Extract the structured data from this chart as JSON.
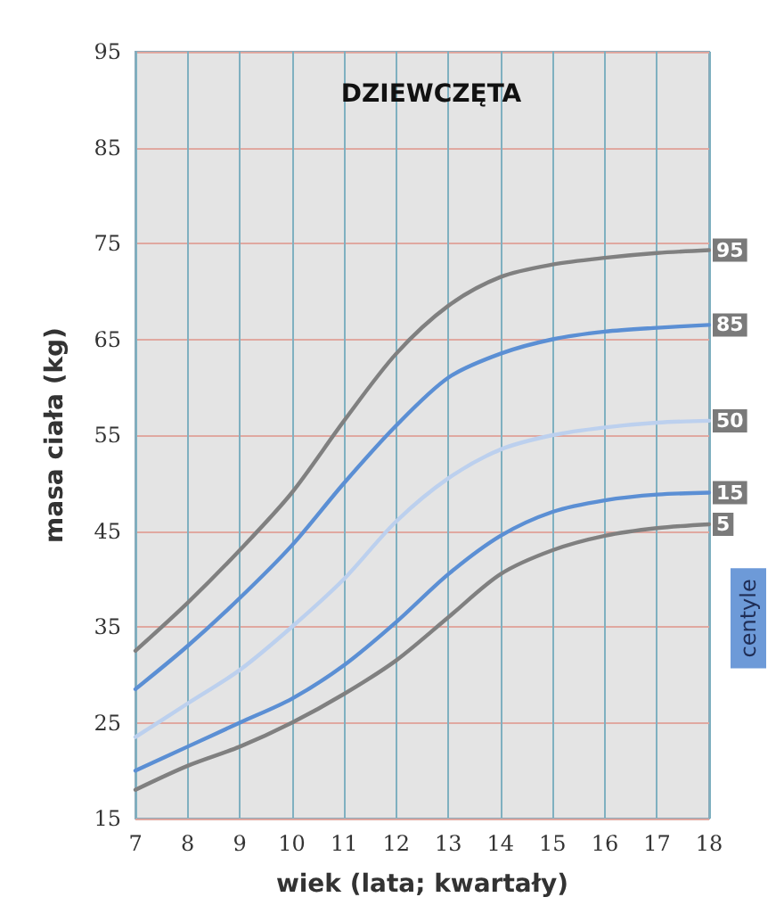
{
  "chart_data": {
    "type": "line",
    "title": "DZIEWCZĘTA",
    "xlabel": "wiek (lata; kwartały)",
    "ylabel": "masa ciała (kg)",
    "legend_title": "centyle",
    "x": [
      7,
      8,
      9,
      10,
      11,
      12,
      13,
      14,
      15,
      16,
      17,
      18
    ],
    "series": [
      {
        "name": "95",
        "color": "#808080",
        "values": [
          32.5,
          37.5,
          43,
          49,
          56.5,
          63.5,
          68.5,
          71.5,
          72.8,
          73.5,
          74,
          74.3
        ]
      },
      {
        "name": "85",
        "color": "#5b8fd4",
        "values": [
          28.5,
          33,
          38,
          43.5,
          50,
          56,
          61,
          63.5,
          65,
          65.8,
          66.2,
          66.5
        ]
      },
      {
        "name": "50",
        "color": "#bcd0ee",
        "values": [
          23.5,
          27,
          30.5,
          35,
          40,
          46,
          50.5,
          53.5,
          55,
          55.8,
          56.3,
          56.5
        ]
      },
      {
        "name": "15",
        "color": "#5b8fd4",
        "values": [
          20,
          22.5,
          25,
          27.5,
          31,
          35.5,
          40.5,
          44.5,
          47,
          48.2,
          48.8,
          49
        ]
      },
      {
        "name": "5",
        "color": "#808080",
        "values": [
          18,
          20.5,
          22.5,
          25,
          28,
          31.5,
          36,
          40.5,
          43,
          44.5,
          45.3,
          45.7
        ]
      }
    ],
    "xlim": [
      7,
      18
    ],
    "xticks": [
      7,
      8,
      9,
      10,
      11,
      12,
      13,
      14,
      15,
      16,
      17,
      18
    ],
    "ylim": [
      15,
      95
    ],
    "yticks": [
      15,
      25,
      35,
      45,
      55,
      65,
      75,
      85,
      95
    ],
    "grid": true,
    "marker": "none",
    "line_style": "solid",
    "legend": "right"
  }
}
